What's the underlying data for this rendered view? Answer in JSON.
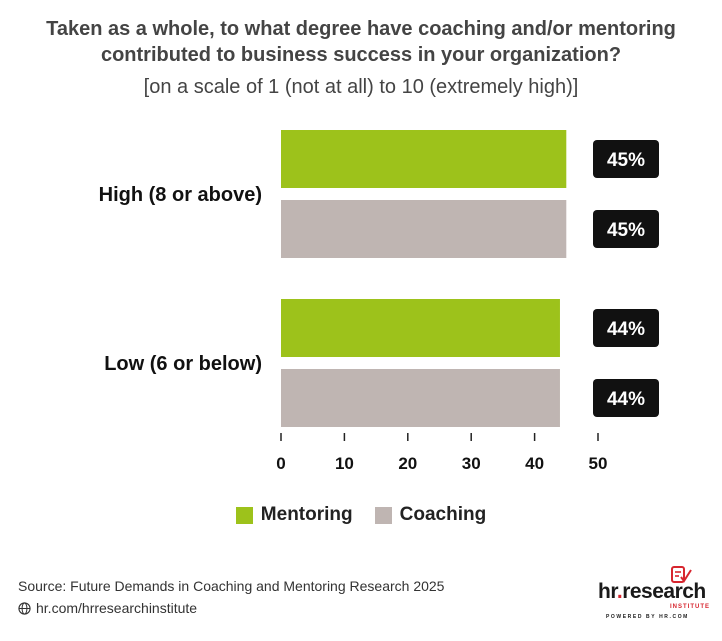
{
  "title": "Taken as a whole, to what degree have coaching and/or mentoring contributed to business success in your organization?",
  "subtitle": "[on a scale of 1 (not at all) to 10 (extremely high)]",
  "chart_data": {
    "type": "bar",
    "orientation": "horizontal",
    "categories": [
      "High (8 or above)",
      "Low (6 or below)"
    ],
    "series": [
      {
        "name": "Mentoring",
        "values": [
          45,
          44
        ],
        "labels": [
          "45%",
          "44%"
        ],
        "color": "#9dc21b"
      },
      {
        "name": "Coaching",
        "values": [
          45,
          44
        ],
        "labels": [
          "45%",
          "44%"
        ],
        "color": "#bfb5b2"
      }
    ],
    "xlim": [
      0,
      50
    ],
    "xticks": [
      0,
      10,
      20,
      30,
      40,
      50
    ],
    "grid": false,
    "legend_position": "bottom"
  },
  "legend": [
    {
      "label": "Mentoring",
      "color": "#9dc21b"
    },
    {
      "label": "Coaching",
      "color": "#bfb5b2"
    }
  ],
  "footer": {
    "source": "Source:  Future Demands in Coaching and Mentoring Research 2025",
    "site": "hr.com/hrresearchinstitute",
    "globe_icon": "globe-icon"
  },
  "logo": {
    "text_main": "hr",
    "text_dot": ".",
    "text_rest": "research",
    "text_institute": "INSTITUTE",
    "text_powered": "POWERED BY HR.COM"
  }
}
